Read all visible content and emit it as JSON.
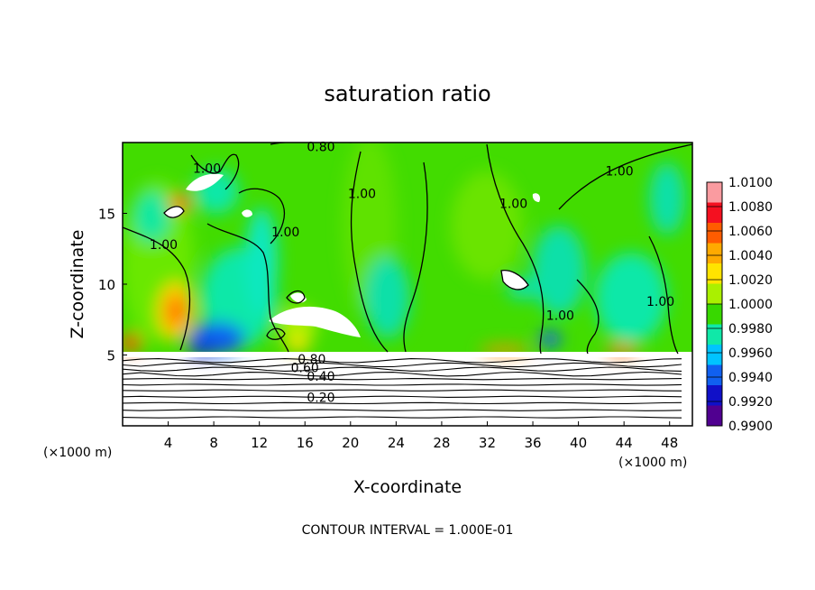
{
  "chart_data": {
    "type": "heatmap",
    "title": "saturation ratio",
    "xlabel": "X-coordinate",
    "ylabel": "Z-coordinate",
    "x_unit": "(×1000 m)",
    "y_unit": "(×1000 m)",
    "xlim": [
      0,
      50
    ],
    "ylim": [
      0,
      20
    ],
    "x_ticks": [
      4,
      8,
      12,
      16,
      20,
      24,
      28,
      32,
      36,
      40,
      44,
      48
    ],
    "y_ticks": [
      5,
      10,
      15
    ],
    "footer": "CONTOUR INTERVAL = 1.000E-01",
    "colorbar": {
      "min": 0.99,
      "max": 1.01,
      "tick_labels": [
        "1.0100",
        "1.0080",
        "1.0060",
        "1.0040",
        "1.0020",
        "1.0000",
        "0.9980",
        "0.9960",
        "0.9940",
        "0.9920",
        "0.9900"
      ],
      "colors": [
        "#fa9ba0",
        "#f41020",
        "#ff5c00",
        "#ffaa00",
        "#ffe400",
        "#aaf000",
        "#38d800",
        "#10e8a8",
        "#00c4ff",
        "#1060f0",
        "#1010c8",
        "#500090"
      ]
    },
    "contour_labels": [
      {
        "text": "1.00",
        "x": 7.4,
        "z": 18.2
      },
      {
        "text": "1.00",
        "x": 3.6,
        "z": 12.8
      },
      {
        "text": "1.00",
        "x": 14.3,
        "z": 13.7
      },
      {
        "text": "1.00",
        "x": 21.0,
        "z": 16.4
      },
      {
        "text": "1.00",
        "x": 34.3,
        "z": 15.7
      },
      {
        "text": "1.00",
        "x": 43.6,
        "z": 18.0
      },
      {
        "text": "1.00",
        "x": 38.4,
        "z": 7.8
      },
      {
        "text": "1.00",
        "x": 47.2,
        "z": 8.8
      },
      {
        "text": "0.80",
        "x": 17.4,
        "z": 19.7
      },
      {
        "text": "0.80",
        "x": 16.6,
        "z": 4.7
      },
      {
        "text": "0.60",
        "x": 16.0,
        "z": 4.1
      },
      {
        "text": "0.40",
        "x": 17.4,
        "z": 3.5
      },
      {
        "text": "0.20",
        "x": 17.4,
        "z": 2.0
      }
    ],
    "lower_contour_levels_z": [
      0.6,
      1.1,
      1.6,
      2.05,
      2.5,
      2.9,
      3.3,
      3.65,
      4.0,
      4.3,
      4.6
    ]
  }
}
